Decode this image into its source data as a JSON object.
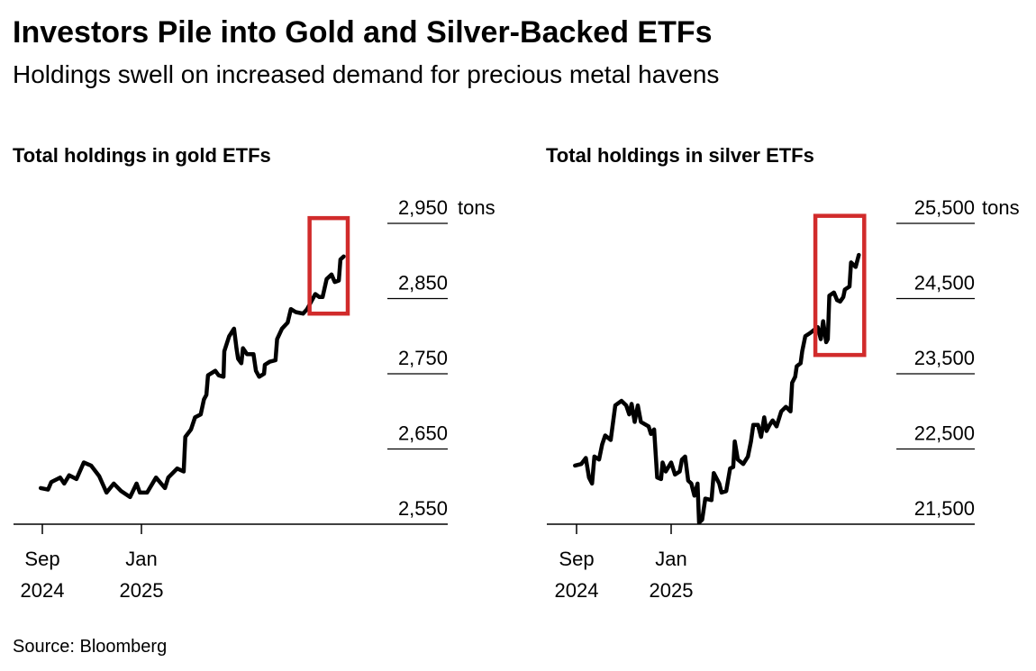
{
  "title": "Investors Pile into Gold and Silver-Backed ETFs",
  "subtitle": "Holdings swell on increased demand for precious metal havens",
  "source": "Source: Bloomberg",
  "colors": {
    "line": "#000000",
    "highlight": "#d12b2b",
    "grid": "#000000"
  },
  "chart_data": [
    {
      "type": "line",
      "title": "Total holdings in gold ETFs",
      "unit": "tons",
      "y_ticks": [
        2550,
        2650,
        2750,
        2850,
        2950
      ],
      "y_tick_labels": [
        "2,550",
        "2,650",
        "2,750",
        "2,850",
        "2,950"
      ],
      "ylim": [
        2550,
        2950
      ],
      "x_ticks": [
        {
          "date": "2024-09-01",
          "month": "Sep",
          "year": "2024"
        },
        {
          "date": "2025-01-01",
          "month": "Jan",
          "year": "2025"
        }
      ],
      "highlight": {
        "start": "2025-07-27",
        "end": "2025-09-12",
        "low": 2830,
        "high": 2957
      },
      "series": [
        {
          "points": [
            [
              "2024-08-30",
              2598
            ],
            [
              "2024-09-08",
              2596
            ],
            [
              "2024-09-12",
              2606
            ],
            [
              "2024-09-23",
              2612
            ],
            [
              "2024-09-28",
              2604
            ],
            [
              "2024-10-04",
              2615
            ],
            [
              "2024-10-13",
              2610
            ],
            [
              "2024-10-22",
              2632
            ],
            [
              "2024-10-31",
              2628
            ],
            [
              "2024-11-10",
              2614
            ],
            [
              "2024-11-19",
              2592
            ],
            [
              "2024-11-28",
              2604
            ],
            [
              "2024-12-07",
              2594
            ],
            [
              "2024-12-18",
              2586
            ],
            [
              "2024-12-26",
              2604
            ],
            [
              "2024-12-30",
              2592
            ],
            [
              "2025-01-08",
              2592
            ],
            [
              "2025-01-19",
              2612
            ],
            [
              "2025-01-30",
              2598
            ],
            [
              "2025-02-03",
              2612
            ],
            [
              "2025-02-14",
              2624
            ],
            [
              "2025-02-22",
              2620
            ],
            [
              "2025-02-24",
              2666
            ],
            [
              "2025-03-03",
              2676
            ],
            [
              "2025-03-08",
              2692
            ],
            [
              "2025-03-15",
              2696
            ],
            [
              "2025-03-19",
              2716
            ],
            [
              "2025-03-22",
              2722
            ],
            [
              "2025-03-24",
              2748
            ],
            [
              "2025-04-02",
              2754
            ],
            [
              "2025-04-06",
              2748
            ],
            [
              "2025-04-12",
              2746
            ],
            [
              "2025-04-13",
              2780
            ],
            [
              "2025-04-19",
              2800
            ],
            [
              "2025-04-25",
              2810
            ],
            [
              "2025-04-28",
              2784
            ],
            [
              "2025-04-30",
              2770
            ],
            [
              "2025-05-04",
              2764
            ],
            [
              "2025-05-06",
              2784
            ],
            [
              "2025-05-11",
              2776
            ],
            [
              "2025-05-19",
              2776
            ],
            [
              "2025-05-22",
              2754
            ],
            [
              "2025-05-26",
              2746
            ],
            [
              "2025-06-01",
              2750
            ],
            [
              "2025-06-02",
              2762
            ],
            [
              "2025-06-08",
              2766
            ],
            [
              "2025-06-15",
              2768
            ],
            [
              "2025-06-17",
              2796
            ],
            [
              "2025-06-23",
              2810
            ],
            [
              "2025-06-30",
              2818
            ],
            [
              "2025-07-04",
              2836
            ],
            [
              "2025-07-10",
              2832
            ],
            [
              "2025-07-19",
              2830
            ],
            [
              "2025-07-24",
              2836
            ],
            [
              "2025-08-03",
              2856
            ],
            [
              "2025-08-08",
              2852
            ],
            [
              "2025-08-12",
              2852
            ],
            [
              "2025-08-17",
              2876
            ],
            [
              "2025-08-23",
              2882
            ],
            [
              "2025-08-27",
              2872
            ],
            [
              "2025-09-01",
              2874
            ],
            [
              "2025-09-03",
              2902
            ],
            [
              "2025-09-07",
              2906
            ]
          ]
        }
      ]
    },
    {
      "type": "line",
      "title": "Total holdings in silver ETFs",
      "unit": "tons",
      "y_ticks": [
        21500,
        22500,
        23500,
        24500,
        25500
      ],
      "y_tick_labels": [
        "21,500",
        "22,500",
        "23,500",
        "24,500",
        "25,500"
      ],
      "ylim": [
        21500,
        25500
      ],
      "x_ticks": [
        {
          "date": "2024-09-01",
          "month": "Sep",
          "year": "2024"
        },
        {
          "date": "2025-01-01",
          "month": "Jan",
          "year": "2025"
        }
      ],
      "highlight": {
        "start": "2025-07-06",
        "end": "2025-09-07",
        "low": 23750,
        "high": 25600
      },
      "series": [
        {
          "points": [
            [
              "2024-08-30",
              22280
            ],
            [
              "2024-09-07",
              22300
            ],
            [
              "2024-09-13",
              22380
            ],
            [
              "2024-09-17",
              22120
            ],
            [
              "2024-09-21",
              22040
            ],
            [
              "2024-09-24",
              22400
            ],
            [
              "2024-09-30",
              22360
            ],
            [
              "2024-10-04",
              22560
            ],
            [
              "2024-10-08",
              22680
            ],
            [
              "2024-10-15",
              22620
            ],
            [
              "2024-10-21",
              23080
            ],
            [
              "2024-10-29",
              23140
            ],
            [
              "2024-11-04",
              23080
            ],
            [
              "2024-11-08",
              22960
            ],
            [
              "2024-11-11",
              23100
            ],
            [
              "2024-11-15",
              22860
            ],
            [
              "2024-11-19",
              23080
            ],
            [
              "2024-11-23",
              22860
            ],
            [
              "2024-12-03",
              22800
            ],
            [
              "2024-12-06",
              22700
            ],
            [
              "2024-12-10",
              22760
            ],
            [
              "2024-12-14",
              22120
            ],
            [
              "2024-12-19",
              22100
            ],
            [
              "2024-12-21",
              22320
            ],
            [
              "2024-12-25",
              22200
            ],
            [
              "2025-01-01",
              22320
            ],
            [
              "2025-01-06",
              22160
            ],
            [
              "2025-01-12",
              22200
            ],
            [
              "2025-01-15",
              22360
            ],
            [
              "2025-01-19",
              22400
            ],
            [
              "2025-01-23",
              22080
            ],
            [
              "2025-01-27",
              22040
            ],
            [
              "2025-01-31",
              21880
            ],
            [
              "2025-02-04",
              22040
            ],
            [
              "2025-02-06",
              21520
            ],
            [
              "2025-02-10",
              21560
            ],
            [
              "2025-02-14",
              21840
            ],
            [
              "2025-02-22",
              21820
            ],
            [
              "2025-02-25",
              22180
            ],
            [
              "2025-03-04",
              22040
            ],
            [
              "2025-03-07",
              21920
            ],
            [
              "2025-03-13",
              21940
            ],
            [
              "2025-03-18",
              22240
            ],
            [
              "2025-03-22",
              22260
            ],
            [
              "2025-03-24",
              22600
            ],
            [
              "2025-03-28",
              22360
            ],
            [
              "2025-04-04",
              22300
            ],
            [
              "2025-04-10",
              22400
            ],
            [
              "2025-04-14",
              22600
            ],
            [
              "2025-04-17",
              22820
            ],
            [
              "2025-04-23",
              22820
            ],
            [
              "2025-04-27",
              22660
            ],
            [
              "2025-05-01",
              22920
            ],
            [
              "2025-05-04",
              22740
            ],
            [
              "2025-05-08",
              22820
            ],
            [
              "2025-05-12",
              22880
            ],
            [
              "2025-05-17",
              22800
            ],
            [
              "2025-05-23",
              23000
            ],
            [
              "2025-05-29",
              23060
            ],
            [
              "2025-06-04",
              23000
            ],
            [
              "2025-06-06",
              23380
            ],
            [
              "2025-06-10",
              23460
            ],
            [
              "2025-06-12",
              23600
            ],
            [
              "2025-06-17",
              23640
            ],
            [
              "2025-06-19",
              23800
            ],
            [
              "2025-06-23",
              24000
            ],
            [
              "2025-06-29",
              24040
            ],
            [
              "2025-07-09",
              24120
            ],
            [
              "2025-07-13",
              23960
            ],
            [
              "2025-07-16",
              24200
            ],
            [
              "2025-07-20",
              23920
            ],
            [
              "2025-07-22",
              23960
            ],
            [
              "2025-07-24",
              24540
            ],
            [
              "2025-07-30",
              24580
            ],
            [
              "2025-08-03",
              24480
            ],
            [
              "2025-08-07",
              24460
            ],
            [
              "2025-08-11",
              24520
            ],
            [
              "2025-08-13",
              24620
            ],
            [
              "2025-08-19",
              24660
            ],
            [
              "2025-08-21",
              24980
            ],
            [
              "2025-08-27",
              24920
            ],
            [
              "2025-08-31",
              25080
            ]
          ]
        }
      ]
    }
  ]
}
